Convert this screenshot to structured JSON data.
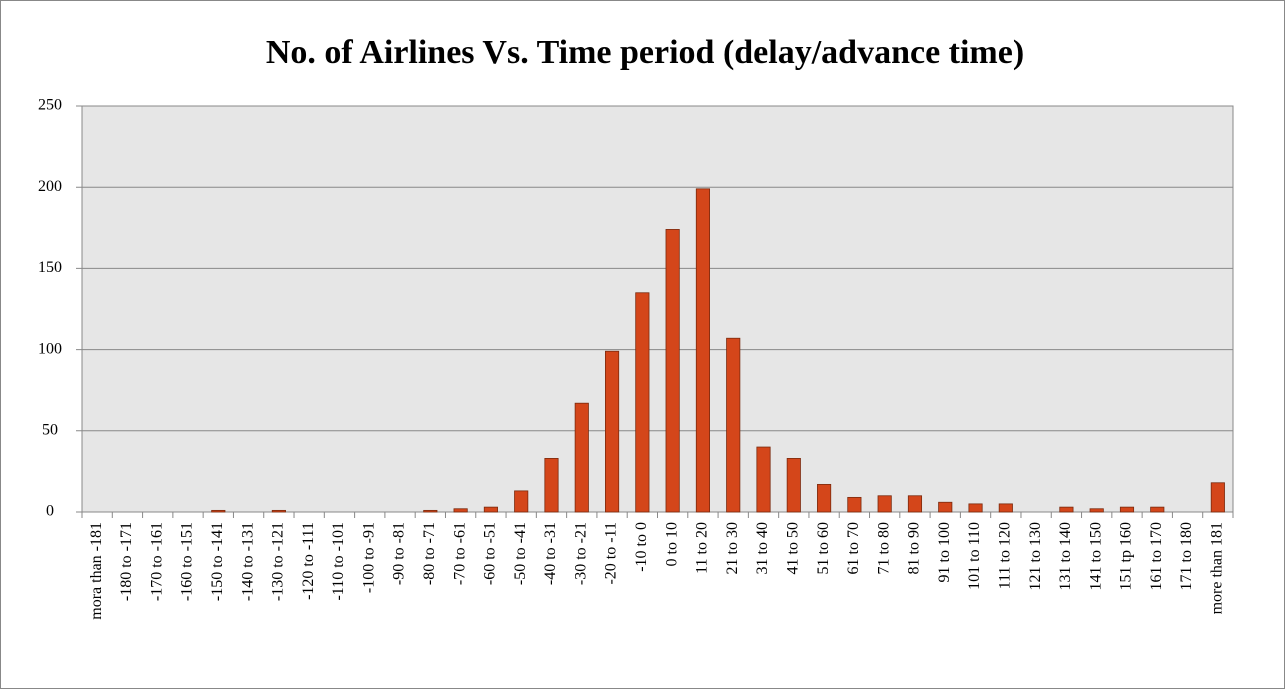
{
  "chart_data": {
    "type": "bar",
    "title": "No. of Airlines Vs. Time period (delay/advance time)",
    "categories": [
      "mora than -181",
      "-180 to -171",
      "-170 to -161",
      "-160 to -151",
      "-150 to -141",
      "-140 to -131",
      "-130 to -121",
      "-120 to -111",
      "-110 to -101",
      "-100 to -91",
      "-90 to -81",
      "-80 to -71",
      "-70 to -61",
      "-60 to -51",
      "-50 to -41",
      "-40 to -31",
      "-30 to -21",
      "-20 to -11",
      "-10 to 0",
      "0 to 10",
      "11 to 20",
      "21 to 30",
      "31 to 40",
      "41 to 50",
      "51 to 60",
      "61 to 70",
      "71 to 80",
      "81 to 90",
      "91 to 100",
      "101 to 110",
      "111 to 120",
      "121 to 130",
      "131 to 140",
      "141 to 150",
      "151 tp 160",
      "161 to 170",
      "171 to 180",
      "more than 181"
    ],
    "values": [
      0,
      0,
      0,
      0,
      1,
      0,
      1,
      0,
      0,
      0,
      0,
      1,
      2,
      3,
      13,
      33,
      67,
      99,
      135,
      174,
      199,
      107,
      40,
      33,
      17,
      9,
      10,
      10,
      6,
      5,
      5,
      0,
      3,
      2,
      3,
      3,
      0,
      18
    ],
    "color": "#d4461a",
    "ylim": [
      0,
      250
    ],
    "yticks": [
      0,
      50,
      100,
      150,
      200,
      250
    ],
    "grid": true
  }
}
